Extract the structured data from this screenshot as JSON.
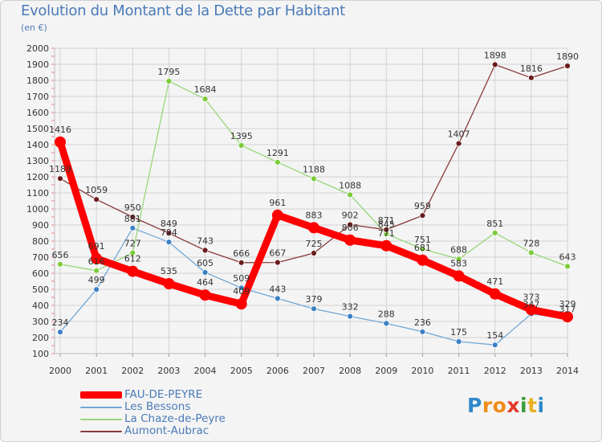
{
  "title": "Evolution du Montant de la Dette par Habitant",
  "subtitle": "(en €)",
  "brand": {
    "letters": [
      "P",
      "r",
      "o",
      "x",
      "i",
      "t",
      "i"
    ],
    "colors": [
      "#2e88c9",
      "#f08c1a",
      "#f08c1a",
      "#e23a2a",
      "#3b9b3b",
      "#e8b020",
      "#2e88c9"
    ]
  },
  "chart_data": {
    "type": "line",
    "x": [
      2000,
      2001,
      2002,
      2003,
      2004,
      2005,
      2006,
      2007,
      2008,
      2009,
      2010,
      2011,
      2012,
      2013,
      2014
    ],
    "ylim": [
      100,
      2000
    ],
    "yticks": [
      100,
      200,
      300,
      400,
      500,
      600,
      700,
      800,
      900,
      1000,
      1100,
      1200,
      1300,
      1400,
      1500,
      1600,
      1700,
      1800,
      1900,
      2000
    ],
    "grid": true,
    "legend_position": "bottom-left",
    "series": [
      {
        "name": "FAU-DE-PEYRE",
        "color": "#ff0000",
        "marker_color": "#ff0000",
        "values": [
          1416,
          691,
          612,
          535,
          464,
          409,
          961,
          883,
          806,
          771,
          681,
          583,
          471,
          373,
          329
        ]
      },
      {
        "name": "Les Bessons",
        "color": "#6fa8d6",
        "marker_color": "#3b82c4",
        "values": [
          234,
          499,
          881,
          794,
          605,
          509,
          443,
          379,
          332,
          288,
          236,
          175,
          154,
          347,
          317
        ]
      },
      {
        "name": "La Chaze-de-Peyre",
        "color": "#99d67a",
        "marker_color": "#7ccc3a",
        "values": [
          656,
          616,
          727,
          1795,
          1684,
          1395,
          1291,
          1188,
          1088,
          845,
          751,
          688,
          851,
          728,
          643
        ]
      },
      {
        "name": "Aumont-Aubrac",
        "color": "#8a3a3a",
        "marker_color": "#6b1c1c",
        "values": [
          1189,
          1059,
          950,
          849,
          743,
          666,
          667,
          725,
          902,
          871,
          959,
          1407,
          1898,
          1816,
          1890
        ]
      }
    ]
  }
}
